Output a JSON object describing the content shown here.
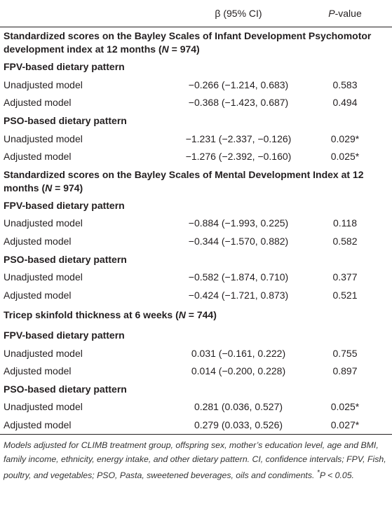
{
  "table": {
    "header": {
      "estimate": "β (95% CI)",
      "p_value": {
        "italic": "P",
        "rest": "-value"
      }
    },
    "sections": [
      {
        "title_parts": [
          "Standardized scores on the Bayley Scales of Infant Development Psychomotor development index at 12 months (",
          "N",
          " = 974)"
        ],
        "groups": [
          {
            "title": "FPV-based dietary pattern",
            "rows": [
              [
                "Unadjusted model",
                "−0.266 (−1.214, 0.683)",
                "0.583"
              ],
              [
                "Adjusted model",
                "−0.368 (−1.423, 0.687)",
                "0.494"
              ]
            ]
          },
          {
            "title": "PSO-based dietary pattern",
            "rows": [
              [
                "Unadjusted model",
                "−1.231 (−2.337, −0.126)",
                "0.029*"
              ],
              [
                "Adjusted model",
                "−1.276 (−2.392, −0.160)",
                "0.025*"
              ]
            ]
          }
        ]
      },
      {
        "title_parts": [
          "Standardized scores on the Bayley Scales of Mental Development Index at 12 months (",
          "N",
          " = 974)"
        ],
        "groups": [
          {
            "title": "FPV-based dietary pattern",
            "rows": [
              [
                "Unadjusted model",
                "−0.884 (−1.993, 0.225)",
                "0.118"
              ],
              [
                "Adjusted model",
                "−0.344 (−1.570, 0.882)",
                "0.582"
              ]
            ]
          },
          {
            "title": "PSO-based dietary pattern",
            "rows": [
              [
                "Unadjusted model",
                "−0.582 (−1.874, 0.710)",
                "0.377"
              ],
              [
                "Adjusted model",
                "−0.424 (−1.721, 0.873)",
                "0.521"
              ]
            ]
          }
        ]
      },
      {
        "title_parts": [
          "Tricep skinfold thickness at 6 weeks (",
          "N",
          " = 744)"
        ],
        "groups": [
          {
            "title": "FPV-based dietary pattern",
            "rows": [
              [
                "Unadjusted model",
                "0.031 (−0.161, 0.222)",
                "0.755"
              ],
              [
                "Adjusted model",
                "0.014 (−0.200, 0.228)",
                "0.897"
              ]
            ]
          },
          {
            "title": "PSO-based dietary pattern",
            "rows": [
              [
                "Unadjusted model",
                "0.281 (0.036, 0.527)",
                "0.025*"
              ],
              [
                "Adjusted model",
                "0.279 (0.033, 0.526)",
                "0.027*"
              ]
            ]
          }
        ]
      }
    ],
    "footnote": {
      "note": "Models adjusted for CLIMB treatment group, offspring sex, mother’s education level, age and BMI, family income, ethnicity, energy intake, and other dietary pattern. CI, confidence intervals; FPV, Fish, poultry, and vegetables; PSO, Pasta, sweetened beverages, oils and condiments.",
      "marker": "*",
      "italic": "P",
      "rest": " < 0.05."
    }
  }
}
